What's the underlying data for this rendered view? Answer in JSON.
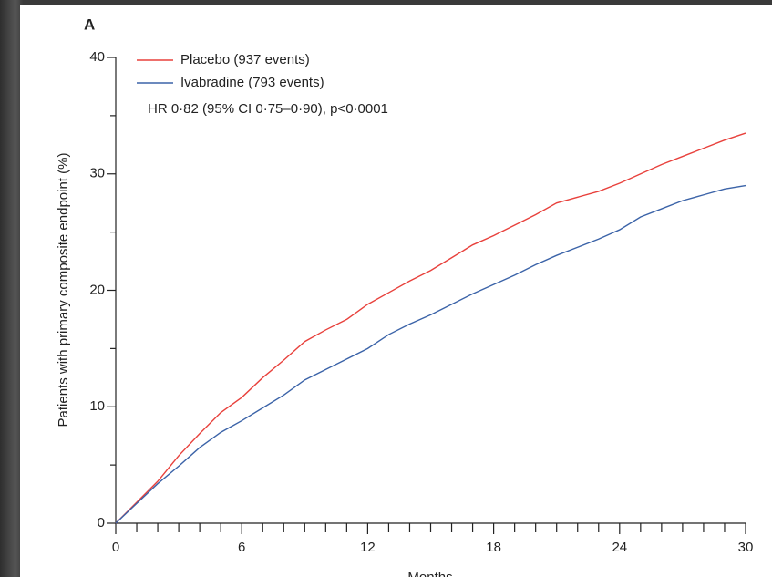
{
  "chart_data": {
    "type": "line",
    "panel_label": "A",
    "ylabel": "Patients with primary composite endpoint (%)",
    "xlabel": "Months",
    "annotation": "HR 0·82 (95% CI 0·75–0·90), p<0·0001",
    "x": [
      0,
      1,
      2,
      3,
      4,
      5,
      6,
      7,
      8,
      9,
      10,
      11,
      12,
      13,
      14,
      15,
      16,
      17,
      18,
      19,
      20,
      21,
      22,
      23,
      24,
      25,
      26,
      27,
      28,
      29,
      30
    ],
    "series": [
      {
        "name": "Placebo (937 events)",
        "color": "#e8413c",
        "values": [
          0,
          1.8,
          3.6,
          5.8,
          7.7,
          9.5,
          10.8,
          12.5,
          14,
          15.6,
          16.6,
          17.5,
          18.8,
          19.8,
          20.8,
          21.7,
          22.8,
          23.9,
          24.7,
          25.6,
          26.5,
          27.5,
          28,
          28.5,
          29.2,
          30,
          30.8,
          31.5,
          32.2,
          32.9,
          33.5
        ]
      },
      {
        "name": "Ivabradine (793 events)",
        "color": "#3b63a8",
        "values": [
          0,
          1.7,
          3.4,
          4.9,
          6.5,
          7.8,
          8.8,
          9.9,
          11,
          12.3,
          13.2,
          14.1,
          15,
          16.2,
          17.1,
          17.9,
          18.8,
          19.7,
          20.5,
          21.3,
          22.2,
          23,
          23.7,
          24.4,
          25.2,
          26.3,
          27,
          27.7,
          28.2,
          28.7,
          29
        ]
      }
    ],
    "xlim": [
      0,
      30
    ],
    "ylim": [
      0,
      40
    ],
    "xticks": [
      0,
      6,
      12,
      18,
      24,
      30
    ],
    "yticks": [
      0,
      10,
      20,
      30,
      40
    ],
    "xminorticks": [
      1,
      2,
      3,
      4,
      5,
      7,
      8,
      9,
      10,
      11,
      13,
      14,
      15,
      16,
      17,
      19,
      20,
      21,
      22,
      23,
      25,
      26,
      27,
      28,
      29
    ],
    "yminorticks": [
      5,
      15,
      25,
      35
    ],
    "grid": false,
    "legend": "upper left"
  }
}
